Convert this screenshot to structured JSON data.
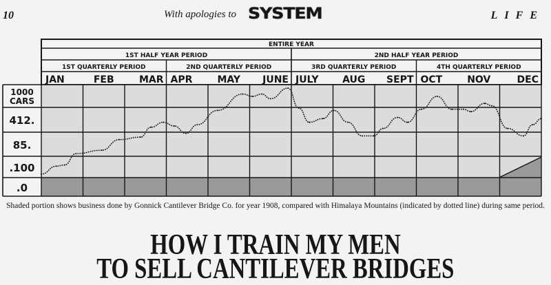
{
  "masthead": {
    "page_number": "10",
    "apologies": "With apologies to",
    "system_logo": "SYSTEM",
    "magazine": "LIFE"
  },
  "chart_data": {
    "type": "line",
    "header_rows": {
      "year": "ENTIRE YEAR",
      "halves": [
        "1ST HALF YEAR PERIOD",
        "2ND HALF YEAR PERIOD"
      ],
      "quarters": [
        "1ST QUARTERLY PERIOD",
        "2ND QUARTERLY PERIOD",
        "3RD QUARTERLY PERIOD",
        "4TH QUARTERLY PERIOD"
      ]
    },
    "categories": [
      "JAN",
      "FEB",
      "MAR",
      "APR",
      "MAY",
      "JUNE",
      "JULY",
      "AUG",
      "SEPT",
      "OCT",
      "NOV",
      "DEC"
    ],
    "y_tick_labels": [
      ".0",
      ".100",
      "85.",
      "412.",
      "1000 CARS"
    ],
    "grid": true,
    "series": [
      {
        "style": "dotted line",
        "x": [
          0,
          0.36,
          0.56,
          0.83,
          1.45,
          1.87,
          2.38,
          2.63,
          2.93,
          3.19,
          3.47,
          3.74,
          4.23,
          4.83,
          5.07,
          5.29,
          5.5,
          5.92,
          6.18,
          6.43,
          6.76,
          7.02,
          7.36,
          7.7,
          7.98,
          8.2,
          8.55,
          8.79,
          9.12,
          9.5,
          9.85,
          10.13,
          10.31,
          10.64,
          10.81,
          11.19,
          11.57,
          11.79,
          12
        ],
        "y": [
          0.66,
          1.05,
          1.1,
          1.6,
          1.75,
          2.2,
          2.3,
          2.7,
          2.9,
          2.75,
          2.45,
          2.8,
          3.4,
          4.1,
          4.0,
          4.1,
          3.9,
          4.35,
          3.5,
          2.9,
          3.05,
          3.4,
          2.9,
          2.35,
          2.35,
          2.65,
          3.1,
          2.9,
          3.45,
          4.0,
          3.45,
          3.45,
          3.35,
          3.7,
          3.6,
          2.65,
          2.35,
          2.8,
          3.05
        ]
      },
      {
        "style": "shaded area",
        "x": [
          0,
          11,
          12
        ],
        "y": [
          0.5,
          0.5,
          1.45
        ]
      }
    ],
    "colors": {
      "shade": "#9a9a98",
      "grid_bg": "#dcdcda",
      "line": "#1a1a1a"
    }
  },
  "caption": "Shaded portion shows business done by Gonnick Cantilever Bridge Co. for year 1908, compared with Himalaya Mountains (indicated by dotted line) during same period.",
  "headline": [
    "HOW I TRAIN MY MEN",
    "TO SELL CANTILEVER BRIDGES"
  ]
}
